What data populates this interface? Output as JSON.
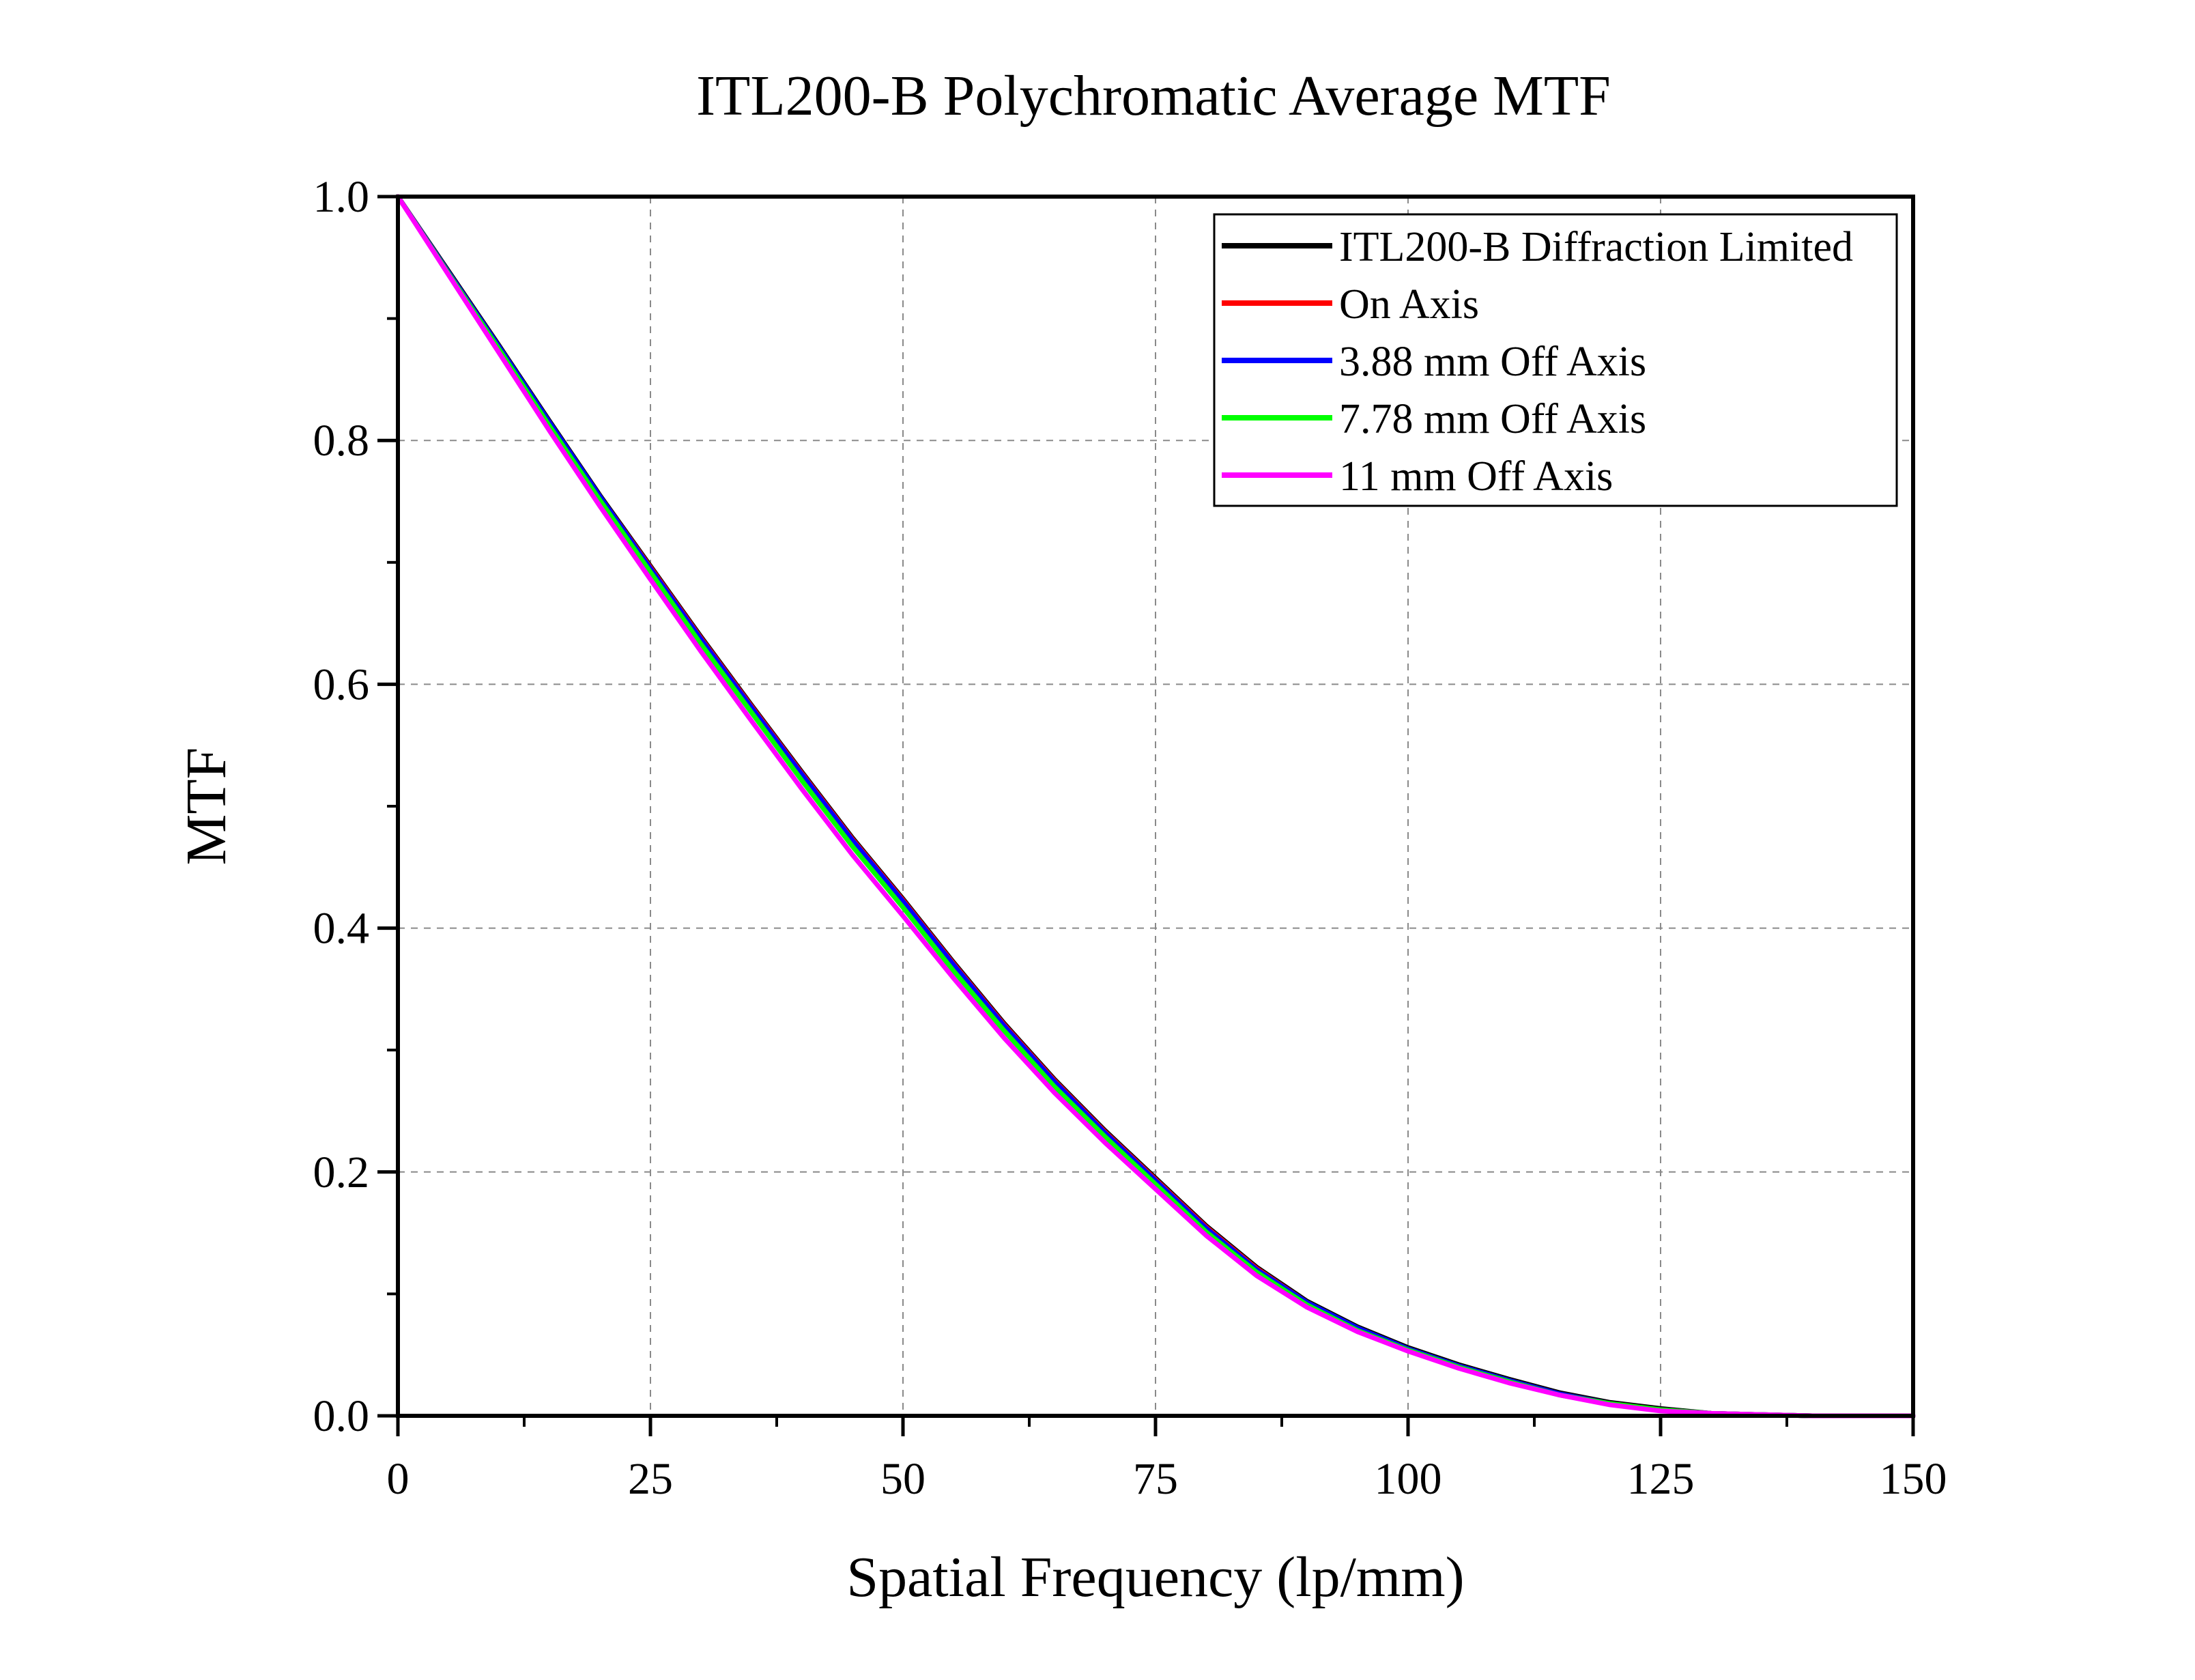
{
  "chart_data": {
    "type": "line",
    "title": "ITL200-B Polychromatic Average MTF",
    "xlabel": "Spatial Frequency (lp/mm)",
    "ylabel": "MTF",
    "xlim": [
      0,
      150
    ],
    "ylim": [
      0,
      1.0
    ],
    "x_ticks": [
      0,
      25,
      50,
      75,
      100,
      125,
      150
    ],
    "x_tick_labels": [
      "0",
      "25",
      "50",
      "75",
      "100",
      "125",
      "150"
    ],
    "y_ticks": [
      0,
      0.2,
      0.4,
      0.6,
      0.8,
      1.0
    ],
    "y_tick_labels": [
      "0.0",
      "0.2",
      "0.4",
      "0.6",
      "0.8",
      "1.0"
    ],
    "grid": true,
    "legend_position": "top-right",
    "x": [
      0,
      5,
      10,
      15,
      20,
      25,
      30,
      35,
      40,
      45,
      50,
      55,
      60,
      65,
      70,
      75,
      80,
      85,
      90,
      95,
      100,
      105,
      110,
      115,
      120,
      125,
      130,
      135,
      140,
      145,
      150
    ],
    "series": [
      {
        "name": "ITL200-B Diffraction Limited",
        "color": "#000000",
        "values": [
          1.0,
          0.939,
          0.878,
          0.816,
          0.755,
          0.697,
          0.639,
          0.583,
          0.528,
          0.474,
          0.424,
          0.372,
          0.322,
          0.276,
          0.234,
          0.195,
          0.156,
          0.122,
          0.094,
          0.073,
          0.056,
          0.042,
          0.03,
          0.019,
          0.011,
          0.006,
          0.002,
          0.001,
          0.0,
          0.0,
          0.0
        ]
      },
      {
        "name": "On Axis",
        "color": "#ff0000",
        "values": [
          1.0,
          0.938,
          0.877,
          0.815,
          0.754,
          0.696,
          0.638,
          0.582,
          0.527,
          0.473,
          0.423,
          0.371,
          0.321,
          0.275,
          0.233,
          0.194,
          0.155,
          0.121,
          0.093,
          0.072,
          0.055,
          0.041,
          0.029,
          0.018,
          0.01,
          0.005,
          0.002,
          0.001,
          0.0,
          0.0,
          0.0
        ]
      },
      {
        "name": "3.88 mm Off Axis",
        "color": "#0000ff",
        "values": [
          1.0,
          0.938,
          0.877,
          0.815,
          0.754,
          0.695,
          0.637,
          0.581,
          0.526,
          0.472,
          0.422,
          0.37,
          0.32,
          0.274,
          0.232,
          0.193,
          0.154,
          0.12,
          0.093,
          0.072,
          0.055,
          0.041,
          0.029,
          0.018,
          0.01,
          0.005,
          0.002,
          0.001,
          0.0,
          0.0,
          0.0
        ]
      },
      {
        "name": "7.78 mm Off Axis",
        "color": "#00ff00",
        "values": [
          1.0,
          0.937,
          0.875,
          0.812,
          0.751,
          0.692,
          0.633,
          0.577,
          0.521,
          0.467,
          0.417,
          0.365,
          0.316,
          0.27,
          0.229,
          0.19,
          0.151,
          0.118,
          0.091,
          0.07,
          0.054,
          0.04,
          0.028,
          0.017,
          0.01,
          0.005,
          0.002,
          0.001,
          0.0,
          0.0,
          0.0
        ]
      },
      {
        "name": "11 mm Off Axis",
        "color": "#ff00ff",
        "values": [
          1.0,
          0.936,
          0.872,
          0.808,
          0.746,
          0.686,
          0.627,
          0.57,
          0.514,
          0.46,
          0.41,
          0.359,
          0.31,
          0.265,
          0.224,
          0.186,
          0.148,
          0.115,
          0.089,
          0.069,
          0.053,
          0.039,
          0.027,
          0.017,
          0.009,
          0.004,
          0.002,
          0.001,
          0.0,
          0.0,
          0.0
        ]
      }
    ]
  }
}
